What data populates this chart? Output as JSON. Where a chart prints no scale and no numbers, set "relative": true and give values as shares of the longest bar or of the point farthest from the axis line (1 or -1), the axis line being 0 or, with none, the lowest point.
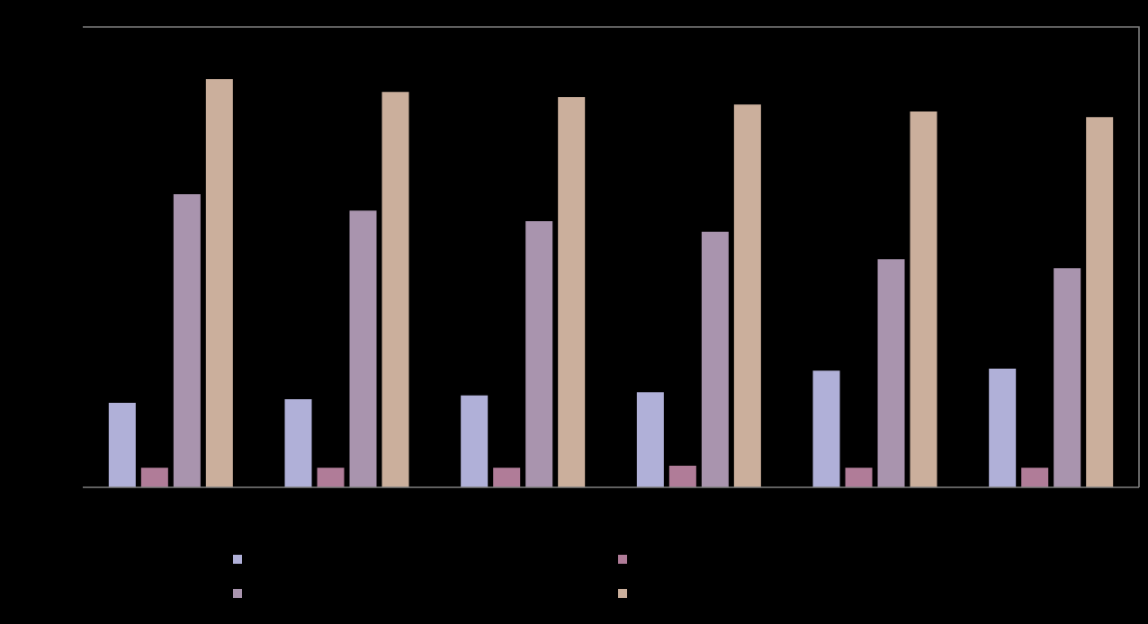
{
  "chart_data": {
    "type": "bar",
    "relative": true,
    "categories": [
      null,
      null,
      null,
      null,
      null,
      null
    ],
    "series": [
      {
        "color": "#b0b0d8",
        "values": [
          0.207,
          0.216,
          0.225,
          0.233,
          0.286,
          0.291
        ]
      },
      {
        "color": "#b07c98",
        "values": [
          0.048,
          0.048,
          0.048,
          0.053,
          0.048,
          0.048
        ]
      },
      {
        "color": "#a994ae",
        "values": [
          0.718,
          0.678,
          0.652,
          0.626,
          0.559,
          0.537
        ]
      },
      {
        "color": "#cbaf9c",
        "values": [
          1.0,
          0.969,
          0.956,
          0.938,
          0.921,
          0.907
        ]
      }
    ]
  }
}
